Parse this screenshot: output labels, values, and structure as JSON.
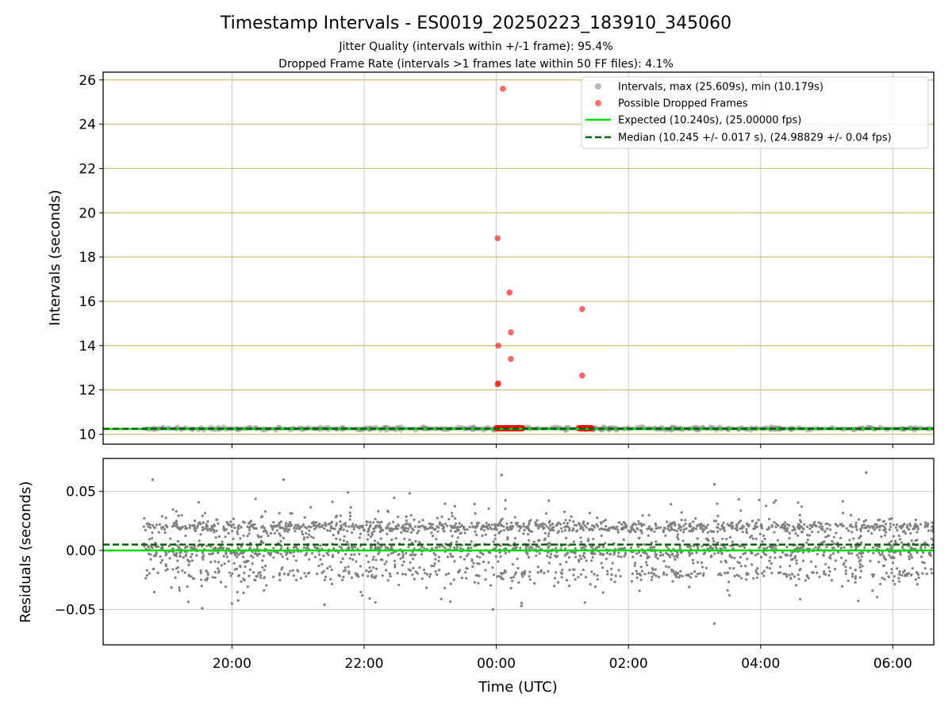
{
  "header": {
    "title": "Timestamp Intervals - ES0019_20250223_183910_345060",
    "subtitle_jitter": "Jitter Quality (intervals within +/-1 frame): 95.4%",
    "subtitle_dropped": "Dropped Frame Rate (intervals >1 frames late within 50 FF files): 4.1%"
  },
  "colors": {
    "intervals": "#808080",
    "dropped": "#ff0000",
    "expected": "#00e000",
    "median": "#006400",
    "hgrid_top": "#d2be78",
    "grid": "#c8c8c8"
  },
  "chart_data": [
    {
      "type": "scatter",
      "ylabel": "Intervals (seconds)",
      "xlim": [
        18.05,
        30.62
      ],
      "ylim": [
        9.55,
        26.35
      ],
      "yticks": [
        10,
        12,
        14,
        16,
        18,
        20,
        22,
        24,
        26
      ],
      "grid": true,
      "legend_position": "top-right",
      "legend": [
        "Intervals, max (25.609s), min (10.179s)",
        "Possible Dropped Frames",
        "Expected (10.240s), (25.00000 fps)",
        "Median (10.245 +/- 0.017 s), (24.98829 +/- 0.04 fps)"
      ],
      "intervals_band": {
        "x_start": 18.65,
        "x_end": 30.62,
        "y_min": 10.179,
        "y_max": 10.33
      },
      "series": [
        {
          "name": "Possible Dropped Frames",
          "points": [
            [
              24.1,
              25.6
            ],
            [
              24.02,
              18.85
            ],
            [
              24.2,
              16.4
            ],
            [
              24.22,
              14.6
            ],
            [
              24.03,
              14.0
            ],
            [
              24.22,
              13.4
            ],
            [
              24.03,
              12.3
            ],
            [
              24.02,
              12.25
            ],
            [
              25.3,
              15.65
            ],
            [
              25.3,
              12.65
            ]
          ],
          "near_expected_runs": [
            {
              "x_start": 24.0,
              "x_end": 24.4,
              "y": 10.27
            },
            {
              "x_start": 25.25,
              "x_end": 25.45,
              "y": 10.27
            }
          ]
        }
      ],
      "expected": 10.24,
      "median": 10.245
    },
    {
      "type": "scatter",
      "xlabel": "Time (UTC)",
      "ylabel": "Residuals (seconds)",
      "xlim": [
        18.05,
        30.62
      ],
      "ylim": [
        -0.08,
        0.078
      ],
      "yticks": [
        -0.05,
        0.0,
        0.05
      ],
      "ytick_labels": [
        "−0.05",
        "0.00",
        "0.05"
      ],
      "xticks": [
        20,
        22,
        24,
        26,
        28,
        30
      ],
      "xtick_labels": [
        "20:00",
        "22:00",
        "00:00",
        "02:00",
        "04:00",
        "06:00"
      ],
      "grid": true,
      "expected_residual": 0.0,
      "median_residual": 0.005,
      "residual_spread": 0.017,
      "outliers": [
        [
          18.8,
          0.06
        ],
        [
          19.55,
          -0.049
        ],
        [
          20.0,
          -0.045
        ],
        [
          20.78,
          0.06
        ],
        [
          21.4,
          -0.046
        ],
        [
          23.95,
          -0.05
        ],
        [
          24.08,
          0.064
        ],
        [
          27.3,
          0.056
        ],
        [
          27.3,
          -0.062
        ],
        [
          29.6,
          0.066
        ],
        [
          24.38,
          -0.047
        ]
      ]
    }
  ]
}
